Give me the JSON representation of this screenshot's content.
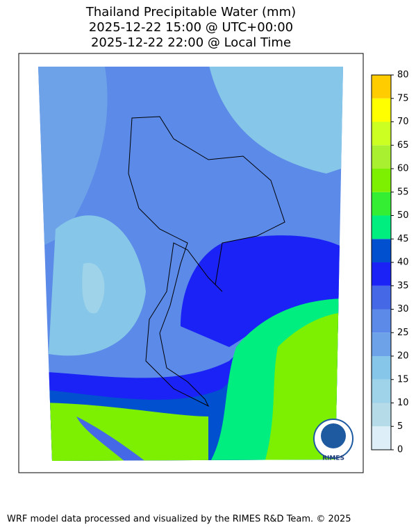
{
  "title": [
    "Thailand Precipitable Water (mm)",
    "2025-12-22 15:00 @ UTC+00:00",
    "2025-12-22 22:00 @ Local Time"
  ],
  "colorbar": {
    "ticks": [
      0,
      5,
      10,
      15,
      20,
      25,
      30,
      35,
      40,
      45,
      50,
      55,
      60,
      65,
      70,
      75,
      80
    ],
    "colors": [
      "#ddeef8",
      "#b5dbe8",
      "#9ed3e9",
      "#86c6e8",
      "#6ea2e8",
      "#5b8ae8",
      "#4468e6",
      "#1a22f5",
      "#0050d0",
      "#00ee80",
      "#33ee33",
      "#7cf000",
      "#a8f030",
      "#ccff22",
      "#ffff00",
      "#ffcc00"
    ]
  },
  "logo_text": "RIMES",
  "footer": "WRF model data processed and visualized by the RIMES R&D Team. © 2025"
}
